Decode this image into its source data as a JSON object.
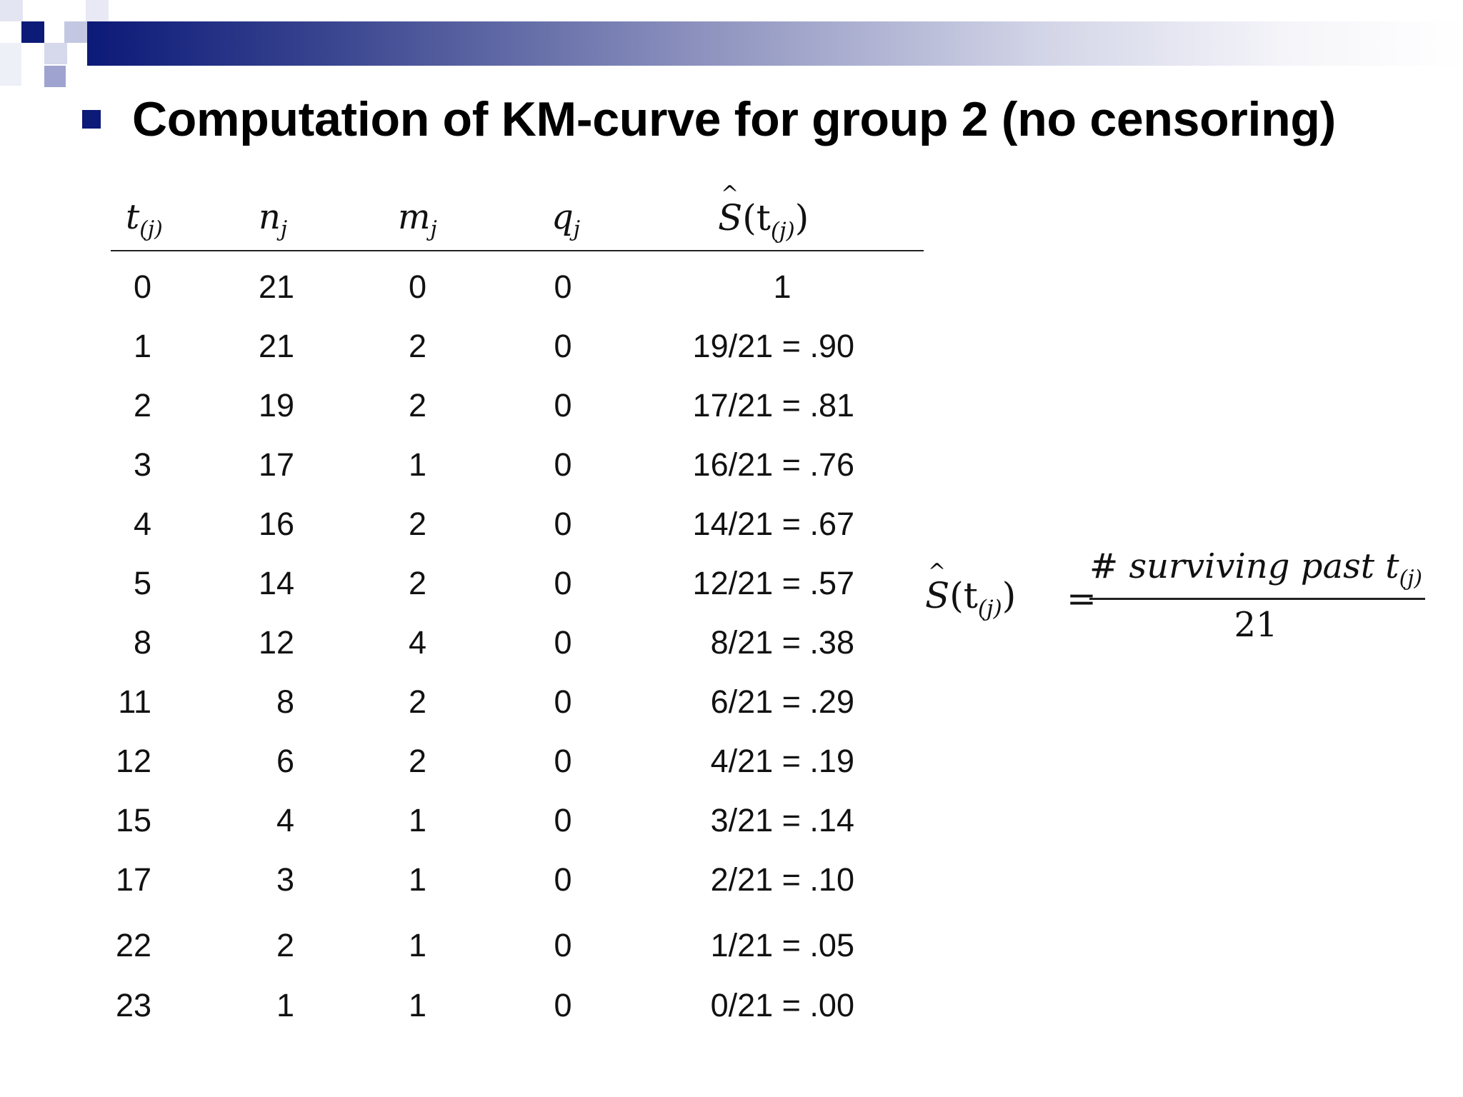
{
  "slide": {
    "title": "Computation of KM-curve for group 2 (no censoring)"
  },
  "table": {
    "headers": {
      "t": "t",
      "t_sub": "(j)",
      "n": "n",
      "n_sub": "j",
      "m": "m",
      "m_sub": "j",
      "q": "q",
      "q_sub": "j",
      "s": "S",
      "s_arg": "(t",
      "s_sub": "(j)",
      "s_close": ")"
    },
    "rows": [
      {
        "t": "0",
        "n": "21",
        "m": "0",
        "q": "0",
        "s": "1"
      },
      {
        "t": "1",
        "n": "21",
        "m": "2",
        "q": "0",
        "s": "19/21 = .90"
      },
      {
        "t": "2",
        "n": "19",
        "m": "2",
        "q": "0",
        "s": "17/21 = .81"
      },
      {
        "t": "3",
        "n": "17",
        "m": "1",
        "q": "0",
        "s": "16/21 = .76"
      },
      {
        "t": "4",
        "n": "16",
        "m": "2",
        "q": "0",
        "s": "14/21 = .67"
      },
      {
        "t": "5",
        "n": "14",
        "m": "2",
        "q": "0",
        "s": "12/21 = .57"
      },
      {
        "t": "8",
        "n": "12",
        "m": "4",
        "q": "0",
        "s": "8/21 = .38"
      },
      {
        "t": "11",
        "n": "8",
        "m": "2",
        "q": "0",
        "s": "6/21 = .29"
      },
      {
        "t": "12",
        "n": "6",
        "m": "2",
        "q": "0",
        "s": "4/21 = .19"
      },
      {
        "t": "15",
        "n": "4",
        "m": "1",
        "q": "0",
        "s": "3/21 = .14"
      },
      {
        "t": "17",
        "n": "3",
        "m": "1",
        "q": "0",
        "s": "2/21 = .10"
      },
      {
        "t": "22",
        "n": "2",
        "m": "1",
        "q": "0",
        "s": "1/21 = .05"
      },
      {
        "t": "23",
        "n": "1",
        "m": "1",
        "q": "0",
        "s": "0/21 = .00"
      }
    ]
  },
  "formula": {
    "lhs_s": "S",
    "lhs_arg": "(t",
    "lhs_sub": "(j)",
    "lhs_close": ")",
    "equals": "=",
    "numerator": "# surviving past t",
    "numerator_sub": "(j)",
    "denominator": "21"
  },
  "colors": {
    "accent": "#0c1a78"
  }
}
